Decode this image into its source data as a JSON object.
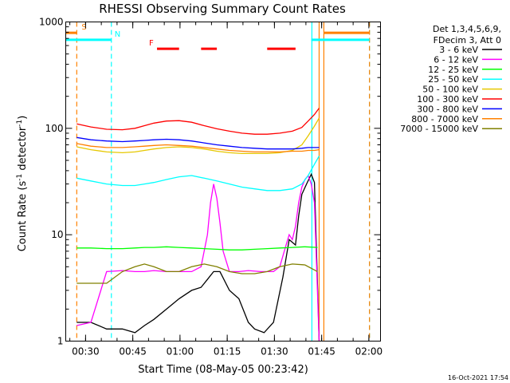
{
  "chart_data": {
    "type": "line",
    "title": "RHESSI Observing Summary Count Rates",
    "xlabel": "Start Time (08-May-05 00:23:42)",
    "ylabel": "Count Rate (s",
    "ylabel_sup1": "-1",
    "ylabel_mid": " detector",
    "ylabel_sup2": "-1",
    "ylabel_end": ")",
    "yscale": "log",
    "ylim": [
      1,
      1000
    ],
    "xlim_minutes": [
      0,
      100
    ],
    "x_unit": "minutes after 00:23:42",
    "x_ticks": [
      {
        "label": "00:30",
        "minutes": 6.3
      },
      {
        "label": "00:45",
        "minutes": 21.3
      },
      {
        "label": "01:00",
        "minutes": 36.3
      },
      {
        "label": "01:15",
        "minutes": 51.3
      },
      {
        "label": "01:30",
        "minutes": 66.3
      },
      {
        "label": "01:45",
        "minutes": 81.3
      },
      {
        "label": "02:00",
        "minutes": 96.3
      }
    ],
    "y_ticks": [
      {
        "label": "1",
        "value": 1
      },
      {
        "label": "10",
        "value": 10
      },
      {
        "label": "100",
        "value": 100
      },
      {
        "label": "1000",
        "value": 1000
      }
    ],
    "legend_header": [
      "Det 1,3,4,5,6,9,",
      "FDecim 3, Att 0"
    ],
    "legend_position": "right",
    "series": [
      {
        "name": "3 - 6 keV",
        "color": "#000000",
        "x": [
          3.5,
          8,
          13,
          18,
          22,
          25,
          28,
          32,
          36,
          40,
          43,
          45,
          47,
          49,
          52,
          55,
          58,
          60,
          63,
          66,
          69,
          71,
          73,
          74,
          75,
          76.5,
          78,
          79,
          80.5
        ],
        "y": [
          1.5,
          1.5,
          1.3,
          1.3,
          1.2,
          1.4,
          1.6,
          2,
          2.5,
          3,
          3.2,
          3.8,
          4.5,
          4.5,
          3,
          2.5,
          1.5,
          1.3,
          1.2,
          1.5,
          4,
          9,
          8,
          15,
          24,
          30,
          37,
          31,
          1
        ]
      },
      {
        "name": "6 - 12 keV",
        "color": "#ff00ff",
        "x": [
          3.5,
          8,
          13,
          18,
          22,
          25,
          28,
          32,
          36,
          40,
          43,
          45,
          46,
          47,
          48,
          49,
          50,
          52,
          55,
          58,
          62,
          66,
          68,
          70,
          71,
          72,
          73,
          74,
          75,
          76,
          77,
          78,
          79,
          80.5
        ],
        "y": [
          1.4,
          1.5,
          4.5,
          4.6,
          4.5,
          4.5,
          4.6,
          4.5,
          4.5,
          4.5,
          5,
          10,
          20,
          30,
          22,
          13,
          7,
          4.5,
          4.5,
          4.6,
          4.5,
          4.5,
          5,
          8,
          10,
          9,
          12,
          20,
          28,
          33,
          36,
          30,
          20,
          1
        ]
      },
      {
        "name": "12 - 25 keV",
        "color": "#00ff00",
        "x": [
          3.5,
          8,
          13,
          18,
          22,
          25,
          28,
          32,
          36,
          40,
          44,
          48,
          52,
          56,
          60,
          64,
          68,
          72,
          76,
          80
        ],
        "y": [
          7.5,
          7.5,
          7.4,
          7.4,
          7.5,
          7.6,
          7.6,
          7.7,
          7.6,
          7.5,
          7.4,
          7.3,
          7.2,
          7.2,
          7.3,
          7.4,
          7.5,
          7.6,
          7.7,
          7.6
        ]
      },
      {
        "name": "25 - 50 keV",
        "color": "#00ffff",
        "x": [
          3.5,
          8,
          13,
          18,
          22,
          25,
          28,
          32,
          36,
          40,
          44,
          48,
          52,
          56,
          60,
          64,
          68,
          72,
          75,
          77,
          79,
          80.5
        ],
        "y": [
          34,
          32,
          30,
          29,
          29,
          30,
          31,
          33,
          35,
          36,
          34,
          32,
          30,
          28,
          27,
          26,
          26,
          27,
          30,
          36,
          46,
          55
        ]
      },
      {
        "name": "50 - 100 keV",
        "color": "#e6c800",
        "x": [
          3.5,
          8,
          13,
          18,
          22,
          25,
          28,
          32,
          36,
          40,
          44,
          48,
          52,
          56,
          60,
          64,
          68,
          72,
          75,
          77,
          79,
          80.5
        ],
        "y": [
          67,
          63,
          60,
          59,
          60,
          62,
          64,
          66,
          67,
          66,
          64,
          61,
          59,
          58,
          58,
          58,
          59,
          62,
          70,
          85,
          105,
          125
        ]
      },
      {
        "name": "100 - 300 keV",
        "color": "#ff0000",
        "x": [
          3.5,
          8,
          13,
          18,
          22,
          25,
          28,
          32,
          36,
          40,
          44,
          48,
          52,
          56,
          60,
          64,
          68,
          72,
          75,
          77,
          79,
          80.5
        ],
        "y": [
          110,
          103,
          98,
          97,
          100,
          106,
          112,
          117,
          118,
          114,
          106,
          99,
          94,
          90,
          88,
          88,
          90,
          94,
          102,
          117,
          135,
          155
        ]
      },
      {
        "name": "300 - 800 keV",
        "color": "#0000ff",
        "x": [
          3.5,
          8,
          13,
          18,
          22,
          25,
          28,
          32,
          36,
          40,
          44,
          48,
          52,
          56,
          60,
          64,
          68,
          72,
          75,
          77,
          79,
          80.5
        ],
        "y": [
          82,
          78,
          76,
          75,
          76,
          77,
          78,
          79,
          78,
          76,
          73,
          70,
          68,
          66,
          65,
          64,
          64,
          64,
          65,
          66,
          66,
          66
        ]
      },
      {
        "name": "800 - 7000 keV",
        "color": "#ff8000",
        "x": [
          3.5,
          8,
          13,
          18,
          22,
          25,
          28,
          32,
          36,
          40,
          44,
          48,
          52,
          56,
          60,
          64,
          68,
          72,
          75,
          77,
          79,
          80.5
        ],
        "y": [
          72,
          68,
          66,
          66,
          67,
          68,
          69,
          70,
          69,
          68,
          66,
          64,
          62,
          61,
          60,
          60,
          60,
          61,
          61,
          62,
          62,
          63
        ]
      },
      {
        "name": "7000 - 15000 keV",
        "color": "#808000",
        "x": [
          3.5,
          8,
          13,
          18,
          22,
          25,
          28,
          32,
          36,
          40,
          44,
          48,
          52,
          56,
          60,
          64,
          68,
          72,
          76,
          80
        ],
        "y": [
          3.5,
          3.5,
          3.5,
          4.5,
          5,
          5.3,
          5,
          4.5,
          4.5,
          5,
          5.3,
          5,
          4.5,
          4.3,
          4.3,
          4.5,
          5,
          5.3,
          5.2,
          4.5
        ]
      }
    ],
    "flags": [
      {
        "label": "S",
        "color": "#ff8000",
        "level": 790,
        "segments": [
          [
            -5,
            3.5
          ],
          [
            82,
            96.5
          ]
        ]
      },
      {
        "label": "N",
        "color": "#00ffff",
        "level": 680,
        "segments": [
          [
            -5,
            14.5
          ],
          [
            78,
            96.5
          ]
        ]
      },
      {
        "label": "F",
        "color": "#ff0000",
        "level": 560,
        "segments": [
          [
            29,
            36
          ],
          [
            43,
            48
          ],
          [
            64,
            73
          ]
        ]
      }
    ],
    "vlines": [
      {
        "minutes": 3.5,
        "color": "#ff8000",
        "style": "dashed"
      },
      {
        "minutes": 14.5,
        "color": "#00ffff",
        "style": "dashed"
      },
      {
        "minutes": 78.2,
        "color": "#00ffff",
        "style": "solid"
      },
      {
        "minutes": 80.5,
        "color": "#ff8000",
        "style": "solid"
      },
      {
        "minutes": 82,
        "color": "#ff8000",
        "style": "solid"
      },
      {
        "minutes": 96.5,
        "color": "#00ffff",
        "style": "dashed"
      },
      {
        "minutes": 96.5,
        "color": "#ff8000",
        "style": "dashed"
      }
    ]
  },
  "footer_timestamp": "16-Oct-2021 17:54"
}
